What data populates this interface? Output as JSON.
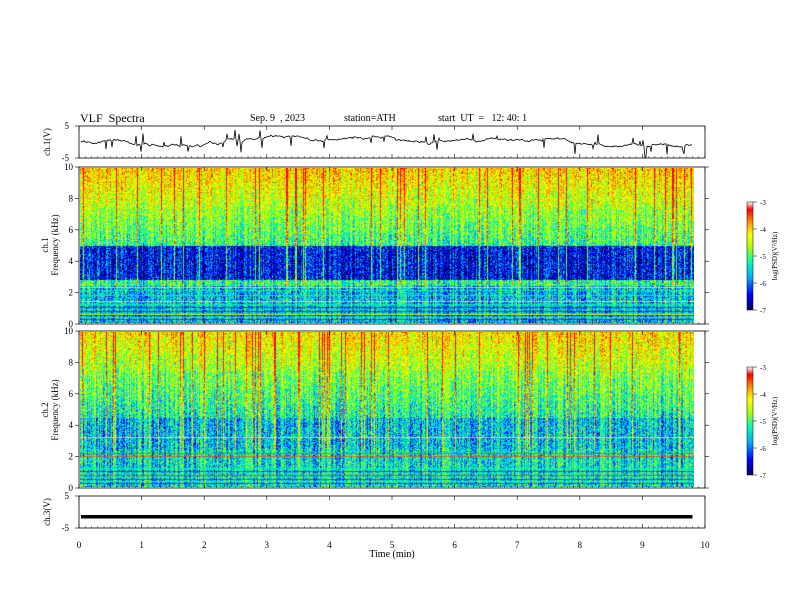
{
  "header": {
    "title": "VLF  Spectra",
    "date": "Sep. 9  , 2023",
    "station": "station=ATH",
    "start": "start  UT  =   12: 40: 1"
  },
  "colors": {
    "colormap": [
      "#000066",
      "#0000ff",
      "#00aaff",
      "#00ffaa",
      "#aaff00",
      "#ffff00",
      "#ff8800",
      "#ff0000",
      "#ffffff"
    ],
    "trace": "#000000"
  },
  "chart_data": [
    {
      "type": "line",
      "panel": "ch1-waveform",
      "ylabel": "ch.1(V)",
      "ylim": [
        -5,
        5
      ],
      "yticks": [
        "5",
        "-5"
      ],
      "xlim": [
        0,
        10
      ],
      "x_end": 9.8,
      "level": 0.5,
      "amplitude_range": [
        -1.5,
        3.5
      ]
    },
    {
      "type": "heatmap",
      "panel": "ch1-spectrogram",
      "channel_label": "ch.1",
      "ylabel": "Frequency (kHz)",
      "ylim": [
        0,
        10
      ],
      "yticks": [
        "0",
        "2",
        "4",
        "6",
        "8",
        "10"
      ],
      "xlim": [
        0,
        10
      ],
      "x_end": 9.8,
      "dark_band_khz": [
        2.8,
        5.0
      ],
      "bright_band_khz": [
        7.5,
        10
      ],
      "narrow_lines_khz": [
        2.1,
        2.3,
        0.4,
        0.6,
        1.2,
        1.4,
        1.8
      ],
      "colorbar": {
        "label": "log(PSD)(V²/Hz)",
        "ticks": [
          "-3",
          "-4",
          "-5",
          "-6",
          "-7"
        ],
        "range": [
          -7,
          -3
        ]
      }
    },
    {
      "type": "heatmap",
      "panel": "ch2-spectrogram",
      "channel_label": "ch.2",
      "ylabel": "Frequency (kHz)",
      "ylim": [
        0,
        10
      ],
      "yticks": [
        "0",
        "2",
        "4",
        "6",
        "8",
        "10"
      ],
      "xlim": [
        0,
        10
      ],
      "x_end": 9.8,
      "bright_band_khz": [
        7.5,
        10
      ],
      "narrow_lines_khz": [
        2.0,
        2.2,
        1.2,
        0.8,
        0.4,
        3.2
      ],
      "colorbar": {
        "label": "log(PSD)(V²/Hz)",
        "ticks": [
          "-3",
          "-4",
          "-5",
          "-6",
          "-7"
        ],
        "range": [
          -7,
          -3
        ]
      }
    },
    {
      "type": "line",
      "panel": "ch3-waveform",
      "ylabel": "ch.3(V)",
      "ylim": [
        -5,
        5
      ],
      "yticks": [
        "5",
        "-5"
      ],
      "xlim": [
        0,
        10
      ],
      "x_end": 9.8,
      "level": -1.5
    }
  ],
  "xaxis": {
    "label": "Time  (min)",
    "ticks": [
      "0",
      "1",
      "2",
      "3",
      "4",
      "5",
      "6",
      "7",
      "8",
      "9",
      "10"
    ]
  }
}
